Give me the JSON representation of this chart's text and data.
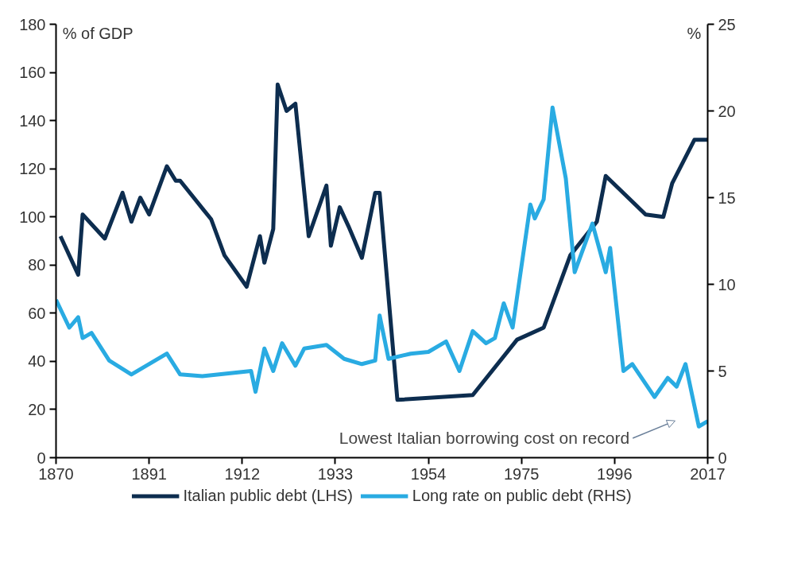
{
  "chart_data": {
    "type": "line",
    "ylabel": "% of GDP",
    "y2label": "%",
    "xlim": [
      1870,
      2017
    ],
    "xticks": [
      1870,
      1891,
      1912,
      1933,
      1954,
      1975,
      1996,
      2017
    ],
    "ylim": [
      0,
      180
    ],
    "yticks": [
      0,
      20,
      40,
      60,
      80,
      100,
      120,
      140,
      160,
      180
    ],
    "y2lim": [
      0,
      25
    ],
    "y2ticks": [
      0,
      5,
      10,
      15,
      20,
      25
    ],
    "grid": false,
    "legend": "bottom",
    "annotations": [
      "Lowest Italian borrowing cost on record"
    ],
    "series": [
      {
        "name": "Italian public debt (LHS)",
        "color": "#0d2d4f",
        "x": [
          1871,
          1875,
          1876,
          1881,
          1885,
          1887,
          1889,
          1891,
          1895,
          1897,
          1898,
          1905,
          1908,
          1913,
          1916,
          1917,
          1919,
          1920,
          1922,
          1924,
          1927,
          1931,
          1932,
          1934,
          1936,
          1939,
          1942,
          1943,
          1947,
          1964,
          1974,
          1980,
          1986,
          1992,
          1994,
          2003,
          2007,
          2009,
          2014,
          2017
        ],
        "values": [
          92,
          76,
          101,
          91,
          110,
          98,
          108,
          101,
          121,
          115,
          115,
          99,
          84,
          71,
          92,
          81,
          95,
          155,
          144,
          147,
          92,
          113,
          88,
          104,
          96,
          83,
          110,
          110,
          24,
          26,
          49,
          54,
          84,
          98,
          117,
          101,
          100,
          114,
          132,
          132
        ]
      },
      {
        "name": "Long rate on public debt (RHS)",
        "color": "#29abe2",
        "axis": "y2",
        "x": [
          1870,
          1873,
          1875,
          1876,
          1878,
          1882,
          1887,
          1895,
          1898,
          1903,
          1914,
          1915,
          1917,
          1919,
          1921,
          1924,
          1926,
          1931,
          1935,
          1939,
          1942,
          1943,
          1945,
          1950,
          1954,
          1958,
          1961,
          1964,
          1967,
          1969,
          1971,
          1973,
          1977,
          1978,
          1980,
          1982,
          1985,
          1987,
          1988,
          1991,
          1994,
          1995,
          1998,
          2000,
          2005,
          2008,
          2010,
          2012,
          2015,
          2017
        ],
        "values": [
          9.1,
          7.5,
          8.1,
          6.9,
          7.2,
          5.6,
          4.8,
          6.0,
          4.8,
          4.7,
          5.0,
          3.8,
          6.3,
          5.0,
          6.6,
          5.3,
          6.3,
          6.5,
          5.7,
          5.4,
          5.6,
          8.2,
          5.7,
          6.0,
          6.1,
          6.7,
          5.0,
          7.3,
          6.6,
          6.9,
          8.9,
          7.5,
          14.6,
          13.8,
          14.9,
          20.2,
          16.1,
          10.7,
          11.4,
          13.5,
          10.7,
          12.1,
          5.0,
          5.4,
          3.5,
          4.6,
          4.1,
          5.4,
          1.8,
          2.1
        ]
      }
    ]
  }
}
